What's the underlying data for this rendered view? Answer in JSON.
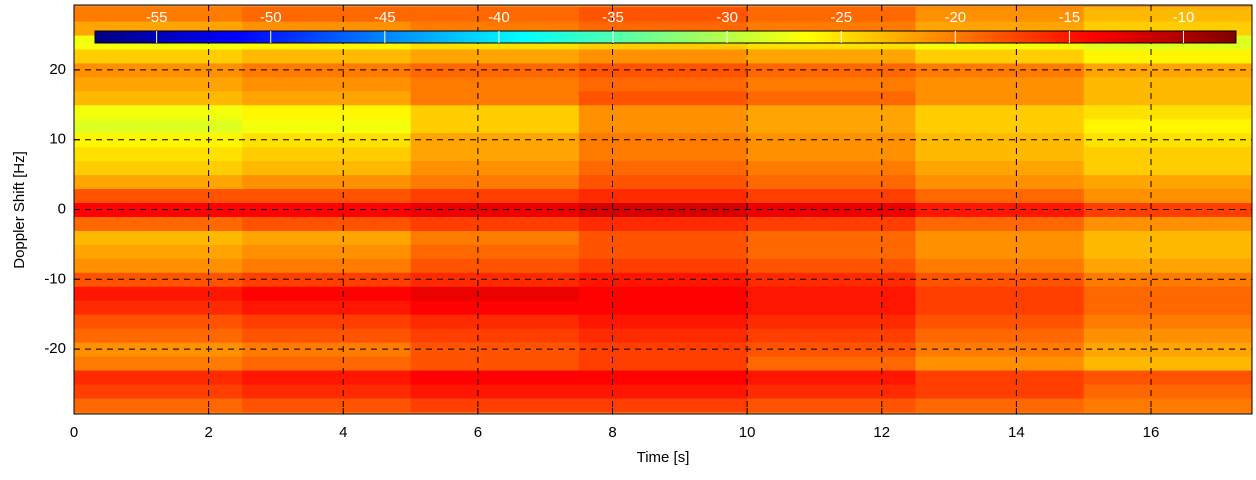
{
  "chart_data": {
    "type": "heatmap",
    "colormap": "jet",
    "x_label": "Time [s]",
    "y_label": "Doppler Shift [Hz]",
    "x": [
      1.25,
      3.75,
      6.25,
      8.75,
      11.25,
      13.75,
      16.25
    ],
    "y": [
      -28,
      -26,
      -24,
      -22,
      -20,
      -18,
      -16,
      -14,
      -12,
      -10,
      -8,
      -6,
      -4,
      -2,
      0,
      2,
      4,
      6,
      8,
      10,
      12,
      14,
      16,
      18,
      20,
      22,
      24,
      26,
      28
    ],
    "values": [
      [
        -19,
        -18,
        -17,
        -17,
        -18,
        -19,
        -20
      ],
      [
        -17,
        -16,
        -15,
        -15,
        -16,
        -17,
        -19
      ],
      [
        -16,
        -15,
        -14,
        -14,
        -15,
        -17,
        -18
      ],
      [
        -20,
        -19,
        -18,
        -17,
        -19,
        -21,
        -23
      ],
      [
        -21,
        -20,
        -18,
        -17,
        -18,
        -20,
        -22
      ],
      [
        -19,
        -18,
        -17,
        -16,
        -17,
        -19,
        -21
      ],
      [
        -18,
        -17,
        -16,
        -15,
        -16,
        -18,
        -20
      ],
      [
        -16,
        -15,
        -14,
        -14,
        -15,
        -17,
        -19
      ],
      [
        -15,
        -14,
        -13,
        -14,
        -15,
        -17,
        -19
      ],
      [
        -18,
        -17,
        -16,
        -15,
        -16,
        -18,
        -20
      ],
      [
        -21,
        -20,
        -18,
        -17,
        -18,
        -20,
        -22
      ],
      [
        -22,
        -21,
        -19,
        -18,
        -19,
        -21,
        -23
      ],
      [
        -23,
        -22,
        -20,
        -18,
        -19,
        -21,
        -23
      ],
      [
        -19,
        -18,
        -17,
        -16,
        -17,
        -19,
        -21
      ],
      [
        -14,
        -14,
        -13,
        -12,
        -13,
        -15,
        -17
      ],
      [
        -18,
        -18,
        -17,
        -16,
        -17,
        -19,
        -21
      ],
      [
        -22,
        -21,
        -20,
        -18,
        -19,
        -21,
        -22
      ],
      [
        -24,
        -23,
        -21,
        -19,
        -20,
        -22,
        -24
      ],
      [
        -25,
        -24,
        -22,
        -20,
        -21,
        -23,
        -24
      ],
      [
        -26,
        -25,
        -22,
        -20,
        -21,
        -23,
        -25
      ],
      [
        -28,
        -27,
        -24,
        -21,
        -22,
        -24,
        -26
      ],
      [
        -27,
        -26,
        -24,
        -21,
        -22,
        -24,
        -25
      ],
      [
        -23,
        -22,
        -20,
        -18,
        -19,
        -21,
        -23
      ],
      [
        -22,
        -21,
        -20,
        -19,
        -20,
        -21,
        -23
      ],
      [
        -21,
        -20,
        -19,
        -18,
        -19,
        -20,
        -22
      ],
      [
        -24,
        -23,
        -22,
        -21,
        -22,
        -24,
        -26
      ],
      [
        -27,
        -26,
        -25,
        -24,
        -25,
        -27,
        -28
      ],
      [
        -22,
        -21,
        -20,
        -19,
        -20,
        -22,
        -24
      ],
      [
        -20,
        -19,
        -19,
        -18,
        -19,
        -21,
        -23
      ]
    ],
    "xlim": [
      0,
      17.5
    ],
    "xticks": [
      0,
      2,
      4,
      6,
      8,
      10,
      12,
      14,
      16
    ],
    "ylim": [
      -29.3,
      29.3
    ],
    "yticks": [
      -20,
      -10,
      0,
      10,
      20
    ],
    "clim": [
      -57.7,
      -7.7
    ],
    "colorbar_ticks": [
      -55,
      -50,
      -45,
      -40,
      -35,
      -30,
      -25,
      -20,
      -15,
      -10
    ],
    "grid": true
  }
}
